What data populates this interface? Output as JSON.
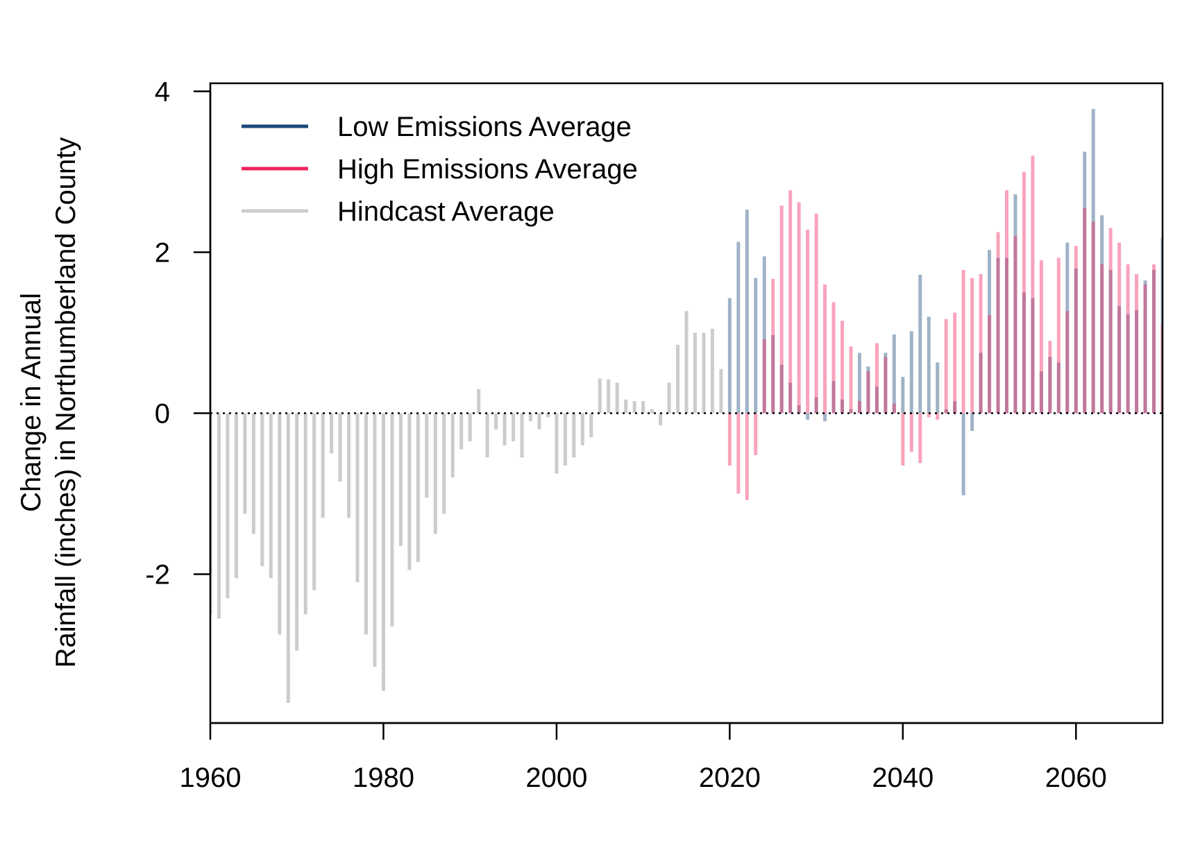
{
  "chart_data": {
    "type": "bar",
    "xlabel": "",
    "ylabel_lines": [
      "Change in Annual",
      "Rainfall (inches) in Northumberland County"
    ],
    "xlim": [
      1960,
      2070
    ],
    "ylim": [
      -3.85,
      4.1
    ],
    "x_ticks": [
      1960,
      1980,
      2000,
      2020,
      2040,
      2060
    ],
    "y_ticks": [
      -2,
      0,
      2,
      4
    ],
    "x_tick_labels": [
      "1960",
      "1980",
      "2000",
      "2020",
      "2040",
      "2060"
    ],
    "y_tick_labels": [
      "-2",
      "0",
      "2",
      "4"
    ],
    "reference_line": {
      "y": 0,
      "style": "dotted",
      "color": "#000000"
    },
    "legend": {
      "placement": "top-left",
      "items": [
        {
          "label": "Low Emissions Average",
          "color": "#1a4a7a"
        },
        {
          "label": "High Emissions Average",
          "color": "#f0245c"
        },
        {
          "label": "Hindcast Average",
          "color": "#cccccc"
        }
      ]
    },
    "series": [
      {
        "name": "Hindcast Average",
        "color": "#cccccc",
        "x": [
          1960,
          1961,
          1962,
          1963,
          1964,
          1965,
          1966,
          1967,
          1968,
          1969,
          1970,
          1971,
          1972,
          1973,
          1974,
          1975,
          1976,
          1977,
          1978,
          1979,
          1980,
          1981,
          1982,
          1983,
          1984,
          1985,
          1986,
          1987,
          1988,
          1989,
          1990,
          1991,
          1992,
          1993,
          1994,
          1995,
          1996,
          1997,
          1998,
          1999,
          2000,
          2001,
          2002,
          2003,
          2004,
          2005,
          2006,
          2007,
          2008,
          2009,
          2010,
          2011,
          2012,
          2013,
          2014,
          2015,
          2016,
          2017,
          2018,
          2019
        ],
        "values": [
          -2.5,
          -2.55,
          -2.3,
          -2.05,
          -1.25,
          -1.5,
          -1.9,
          -2.05,
          -2.75,
          -3.6,
          -2.95,
          -2.5,
          -2.2,
          -1.3,
          -0.5,
          -0.85,
          -1.3,
          -2.1,
          -2.75,
          -3.15,
          -3.45,
          -2.65,
          -1.65,
          -1.95,
          -1.85,
          -1.05,
          -1.5,
          -1.25,
          -0.8,
          -0.45,
          -0.35,
          0.3,
          -0.55,
          -0.2,
          -0.4,
          -0.35,
          -0.55,
          -0.1,
          -0.2,
          -0.05,
          -0.75,
          -0.65,
          -0.55,
          -0.4,
          -0.3,
          0.43,
          0.42,
          0.38,
          0.17,
          0.15,
          0.15,
          0.05,
          -0.15,
          0.38,
          0.85,
          1.27,
          1.0,
          1.0,
          1.05,
          0.55
        ]
      },
      {
        "name": "Low Emissions Average",
        "color": "#1a4a7a",
        "x": [
          2020,
          2021,
          2022,
          2023,
          2024,
          2025,
          2026,
          2027,
          2028,
          2029,
          2030,
          2031,
          2032,
          2033,
          2034,
          2035,
          2036,
          2037,
          2038,
          2039,
          2040,
          2041,
          2042,
          2043,
          2044,
          2045,
          2046,
          2047,
          2048,
          2049,
          2050,
          2051,
          2052,
          2053,
          2054,
          2055,
          2056,
          2057,
          2058,
          2059,
          2060,
          2061,
          2062,
          2063,
          2064,
          2065,
          2066,
          2067,
          2068,
          2069,
          2070
        ],
        "values": [
          1.43,
          2.13,
          2.53,
          1.68,
          1.95,
          0.97,
          0.6,
          0.38,
          0.1,
          -0.08,
          0.2,
          -0.1,
          0.4,
          0.17,
          0.05,
          0.75,
          0.58,
          0.33,
          0.75,
          0.98,
          0.45,
          1.02,
          1.72,
          1.2,
          0.63,
          0.05,
          0.15,
          -1.02,
          -0.22,
          0.75,
          2.03,
          1.93,
          1.93,
          2.72,
          1.5,
          1.43,
          0.52,
          0.7,
          0.63,
          2.12,
          1.8,
          3.25,
          3.78,
          2.46,
          1.78,
          1.33,
          1.23,
          1.28,
          1.65,
          1.78,
          2.18
        ]
      },
      {
        "name": "High Emissions Average",
        "color": "#f0245c",
        "x": [
          2020,
          2021,
          2022,
          2023,
          2024,
          2025,
          2026,
          2027,
          2028,
          2029,
          2030,
          2031,
          2032,
          2033,
          2034,
          2035,
          2036,
          2037,
          2038,
          2039,
          2040,
          2041,
          2042,
          2043,
          2044,
          2045,
          2046,
          2047,
          2048,
          2049,
          2050,
          2051,
          2052,
          2053,
          2054,
          2055,
          2056,
          2057,
          2058,
          2059,
          2060,
          2061,
          2062,
          2063,
          2064,
          2065,
          2066,
          2067,
          2068,
          2069,
          2070
        ],
        "values": [
          -0.65,
          -1.0,
          -1.08,
          -0.52,
          0.92,
          1.67,
          2.58,
          2.77,
          2.62,
          2.28,
          2.48,
          1.6,
          1.38,
          1.15,
          0.83,
          0.15,
          0.52,
          0.87,
          0.7,
          0.12,
          -0.65,
          -0.48,
          -0.62,
          -0.05,
          -0.08,
          1.17,
          1.25,
          1.78,
          1.68,
          1.73,
          1.22,
          2.25,
          2.77,
          2.2,
          3.0,
          3.2,
          1.9,
          0.9,
          1.93,
          1.27,
          2.08,
          2.55,
          2.38,
          1.85,
          2.3,
          2.12,
          1.85,
          1.73,
          1.6,
          1.85,
          1.1
        ]
      }
    ]
  }
}
